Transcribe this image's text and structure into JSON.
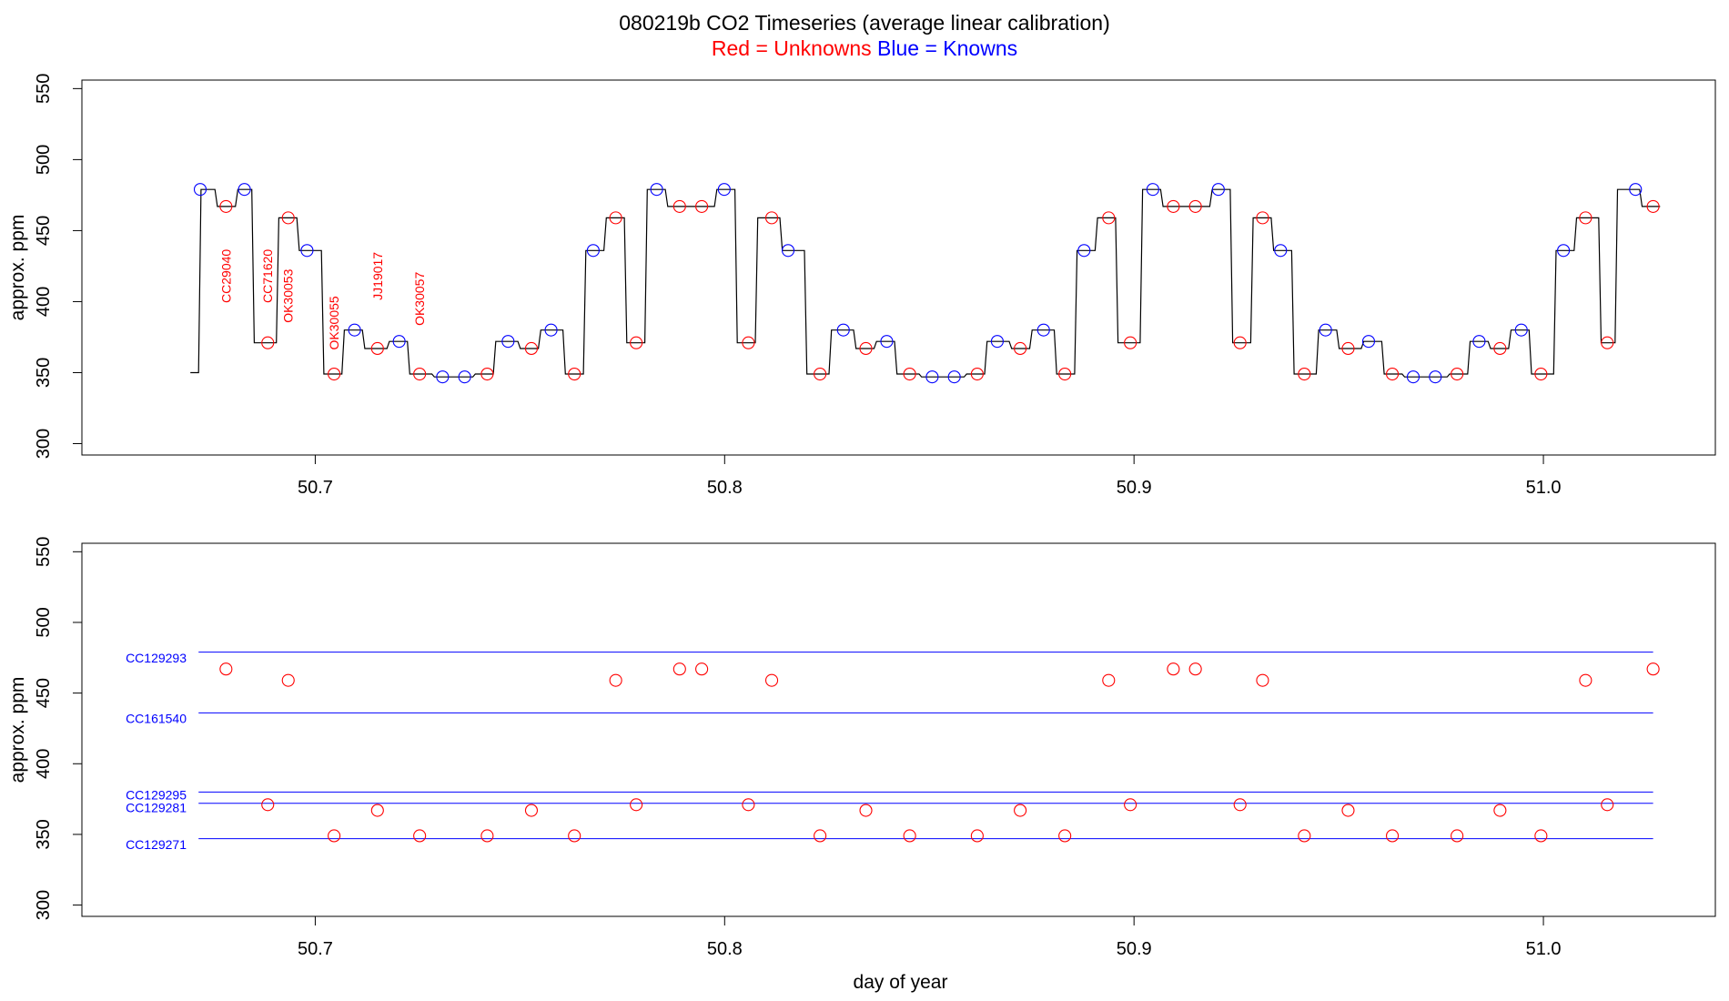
{
  "title": "080219b   CO2 Timeseries (average linear calibration)",
  "subtitle": {
    "red_text": "Red = Unknowns",
    "blue_text": "Blue = Knowns"
  },
  "colors": {
    "unknown": "#ff0000",
    "known": "#0000ff",
    "trace": "#000000"
  },
  "chart_data": [
    {
      "type": "line",
      "ylabel": "approx. ppm",
      "xlabel": "",
      "xlim": [
        50.643,
        51.042
      ],
      "ylim": [
        292,
        556
      ],
      "xticks": [
        50.7,
        50.8,
        50.9,
        51.0
      ],
      "xtick_labels": [
        "50.7",
        "50.8",
        "50.9",
        "51.0"
      ],
      "yticks": [
        300,
        350,
        400,
        450,
        500,
        550
      ],
      "ytick_labels": [
        "300",
        "350",
        "400",
        "450",
        "500",
        "550"
      ],
      "trace_start": [
        50.6695,
        350
      ],
      "plateaus": [
        [
          50.6715,
          50.6755,
          479
        ],
        [
          50.6755,
          50.6805,
          467
        ],
        [
          50.6805,
          50.6845,
          479
        ],
        [
          50.6845,
          50.6905,
          371
        ],
        [
          50.6905,
          50.6955,
          459
        ],
        [
          50.6955,
          50.7015,
          436
        ],
        [
          50.7015,
          50.7065,
          349
        ],
        [
          50.7065,
          50.7115,
          380
        ],
        [
          50.7115,
          50.7175,
          367
        ],
        [
          50.7175,
          50.7225,
          372
        ],
        [
          50.7225,
          50.7285,
          349
        ],
        [
          50.7285,
          50.7385,
          347
        ],
        [
          50.7385,
          50.7435,
          349
        ],
        [
          50.7435,
          50.7495,
          372
        ],
        [
          50.7495,
          50.7545,
          367
        ],
        [
          50.7545,
          50.7605,
          380
        ],
        [
          50.7605,
          50.7655,
          349
        ],
        [
          50.7655,
          50.7705,
          436
        ],
        [
          50.7705,
          50.7755,
          459
        ],
        [
          50.7755,
          50.7805,
          371
        ],
        [
          50.7805,
          50.7855,
          479
        ],
        [
          50.7855,
          50.7975,
          467
        ],
        [
          50.7975,
          50.8025,
          479
        ],
        [
          50.8025,
          50.8075,
          371
        ],
        [
          50.8075,
          50.8135,
          459
        ],
        [
          50.8135,
          50.8195,
          436
        ],
        [
          50.8195,
          50.8255,
          349
        ],
        [
          50.8255,
          50.8315,
          380
        ],
        [
          50.8315,
          50.8365,
          367
        ],
        [
          50.8365,
          50.8415,
          372
        ],
        [
          50.8415,
          50.8475,
          349
        ],
        [
          50.8475,
          50.8585,
          347
        ],
        [
          50.8585,
          50.8635,
          349
        ],
        [
          50.8635,
          50.8695,
          372
        ],
        [
          50.8695,
          50.8745,
          367
        ],
        [
          50.8745,
          50.8805,
          380
        ],
        [
          50.8805,
          50.8855,
          349
        ],
        [
          50.8855,
          50.8905,
          436
        ],
        [
          50.8905,
          50.8955,
          459
        ],
        [
          50.8955,
          50.9015,
          371
        ],
        [
          50.9015,
          50.9065,
          479
        ],
        [
          50.9065,
          50.9185,
          467
        ],
        [
          50.9185,
          50.9235,
          479
        ],
        [
          50.9235,
          50.9285,
          371
        ],
        [
          50.9285,
          50.9335,
          459
        ],
        [
          50.9335,
          50.9385,
          436
        ],
        [
          50.9385,
          50.9445,
          349
        ],
        [
          50.9445,
          50.9495,
          380
        ],
        [
          50.9495,
          50.9555,
          367
        ],
        [
          50.9555,
          50.9605,
          372
        ],
        [
          50.9605,
          50.9655,
          349
        ],
        [
          50.9655,
          50.9765,
          347
        ],
        [
          50.9765,
          50.9815,
          349
        ],
        [
          50.9815,
          50.9865,
          372
        ],
        [
          50.9865,
          50.9915,
          367
        ],
        [
          50.9915,
          50.9965,
          380
        ],
        [
          50.9965,
          51.0025,
          349
        ],
        [
          51.0025,
          51.0075,
          436
        ],
        [
          51.0075,
          51.0135,
          459
        ],
        [
          51.0135,
          51.0175,
          371
        ],
        [
          51.0175,
          51.0235,
          479
        ],
        [
          51.0235,
          51.0285,
          467
        ]
      ],
      "knowns": [
        [
          50.6719,
          479
        ],
        [
          50.6827,
          479
        ],
        [
          50.698,
          436
        ],
        [
          50.7096,
          380
        ],
        [
          50.7205,
          372
        ],
        [
          50.7311,
          347
        ],
        [
          50.7365,
          347
        ],
        [
          50.7471,
          372
        ],
        [
          50.7576,
          380
        ],
        [
          50.7679,
          436
        ],
        [
          50.7834,
          479
        ],
        [
          50.7999,
          479
        ],
        [
          50.8155,
          436
        ],
        [
          50.829,
          380
        ],
        [
          50.8396,
          372
        ],
        [
          50.8507,
          347
        ],
        [
          50.8561,
          347
        ],
        [
          50.8666,
          372
        ],
        [
          50.8779,
          380
        ],
        [
          50.8878,
          436
        ],
        [
          50.9046,
          479
        ],
        [
          50.9206,
          479
        ],
        [
          50.9358,
          436
        ],
        [
          50.9468,
          380
        ],
        [
          50.9573,
          372
        ],
        [
          50.9682,
          347
        ],
        [
          50.9736,
          347
        ],
        [
          50.9843,
          372
        ],
        [
          50.9946,
          380
        ],
        [
          51.0049,
          436
        ],
        [
          51.0225,
          479
        ]
      ],
      "unknowns": [
        [
          50.6782,
          467
        ],
        [
          50.6884,
          371
        ],
        [
          50.6934,
          459
        ],
        [
          50.7046,
          349
        ],
        [
          50.7152,
          367
        ],
        [
          50.7255,
          349
        ],
        [
          50.742,
          349
        ],
        [
          50.7528,
          367
        ],
        [
          50.7633,
          349
        ],
        [
          50.7734,
          459
        ],
        [
          50.7784,
          371
        ],
        [
          50.789,
          467
        ],
        [
          50.7944,
          467
        ],
        [
          50.8058,
          371
        ],
        [
          50.8115,
          459
        ],
        [
          50.8233,
          349
        ],
        [
          50.8345,
          367
        ],
        [
          50.8452,
          349
        ],
        [
          50.8617,
          349
        ],
        [
          50.8722,
          367
        ],
        [
          50.8831,
          349
        ],
        [
          50.8938,
          459
        ],
        [
          50.8991,
          371
        ],
        [
          50.9096,
          467
        ],
        [
          50.915,
          467
        ],
        [
          50.9259,
          371
        ],
        [
          50.9314,
          459
        ],
        [
          50.9416,
          349
        ],
        [
          50.9523,
          367
        ],
        [
          50.9631,
          349
        ],
        [
          50.9789,
          349
        ],
        [
          50.9894,
          367
        ],
        [
          50.9994,
          349
        ],
        [
          51.0103,
          459
        ],
        [
          51.0156,
          371
        ],
        [
          51.0268,
          467
        ]
      ],
      "annotations": [
        {
          "label": "CC29040",
          "x": 50.6782,
          "y": 418
        },
        {
          "label": "CC71620",
          "x": 50.6884,
          "y": 418
        },
        {
          "label": "OK30053",
          "x": 50.6934,
          "y": 404
        },
        {
          "label": "OK30055",
          "x": 50.7046,
          "y": 385
        },
        {
          "label": "JJ19017",
          "x": 50.7152,
          "y": 418
        },
        {
          "label": "OK30057",
          "x": 50.7255,
          "y": 402
        }
      ]
    },
    {
      "type": "scatter",
      "ylabel": "approx. ppm",
      "xlabel": "day of year",
      "xlim": [
        50.643,
        51.042
      ],
      "ylim": [
        292,
        556
      ],
      "xticks": [
        50.7,
        50.8,
        50.9,
        51.0
      ],
      "xtick_labels": [
        "50.7",
        "50.8",
        "50.9",
        "51.0"
      ],
      "yticks": [
        300,
        350,
        400,
        450,
        500,
        550
      ],
      "ytick_labels": [
        "300",
        "350",
        "400",
        "450",
        "500",
        "550"
      ],
      "reference_lines": [
        {
          "name": "CC129293",
          "value": 479,
          "x_start": 50.6715,
          "x_end": 51.0268,
          "label_y": 475
        },
        {
          "name": "CC161540",
          "value": 436,
          "x_start": 50.6715,
          "x_end": 51.0268,
          "label_y": 432
        },
        {
          "name": "CC129295",
          "value": 380,
          "x_start": 50.6715,
          "x_end": 51.0268,
          "label_y": 378
        },
        {
          "name": "CC129281",
          "value": 372,
          "x_start": 50.6715,
          "x_end": 51.0268,
          "label_y": 369
        },
        {
          "name": "CC129271",
          "value": 347,
          "x_start": 50.6715,
          "x_end": 51.0268,
          "label_y": 343
        }
      ],
      "unknowns": [
        [
          50.6782,
          467
        ],
        [
          50.6884,
          371
        ],
        [
          50.6934,
          459
        ],
        [
          50.7046,
          349
        ],
        [
          50.7152,
          367
        ],
        [
          50.7255,
          349
        ],
        [
          50.742,
          349
        ],
        [
          50.7528,
          367
        ],
        [
          50.7633,
          349
        ],
        [
          50.7734,
          459
        ],
        [
          50.7784,
          371
        ],
        [
          50.789,
          467
        ],
        [
          50.7944,
          467
        ],
        [
          50.8058,
          371
        ],
        [
          50.8115,
          459
        ],
        [
          50.8233,
          349
        ],
        [
          50.8345,
          367
        ],
        [
          50.8452,
          349
        ],
        [
          50.8617,
          349
        ],
        [
          50.8722,
          367
        ],
        [
          50.8831,
          349
        ],
        [
          50.8938,
          459
        ],
        [
          50.8991,
          371
        ],
        [
          50.9096,
          467
        ],
        [
          50.915,
          467
        ],
        [
          50.9259,
          371
        ],
        [
          50.9314,
          459
        ],
        [
          50.9416,
          349
        ],
        [
          50.9523,
          367
        ],
        [
          50.9631,
          349
        ],
        [
          50.9789,
          349
        ],
        [
          50.9894,
          367
        ],
        [
          50.9994,
          349
        ],
        [
          51.0103,
          459
        ],
        [
          51.0156,
          371
        ],
        [
          51.0268,
          467
        ]
      ]
    }
  ]
}
